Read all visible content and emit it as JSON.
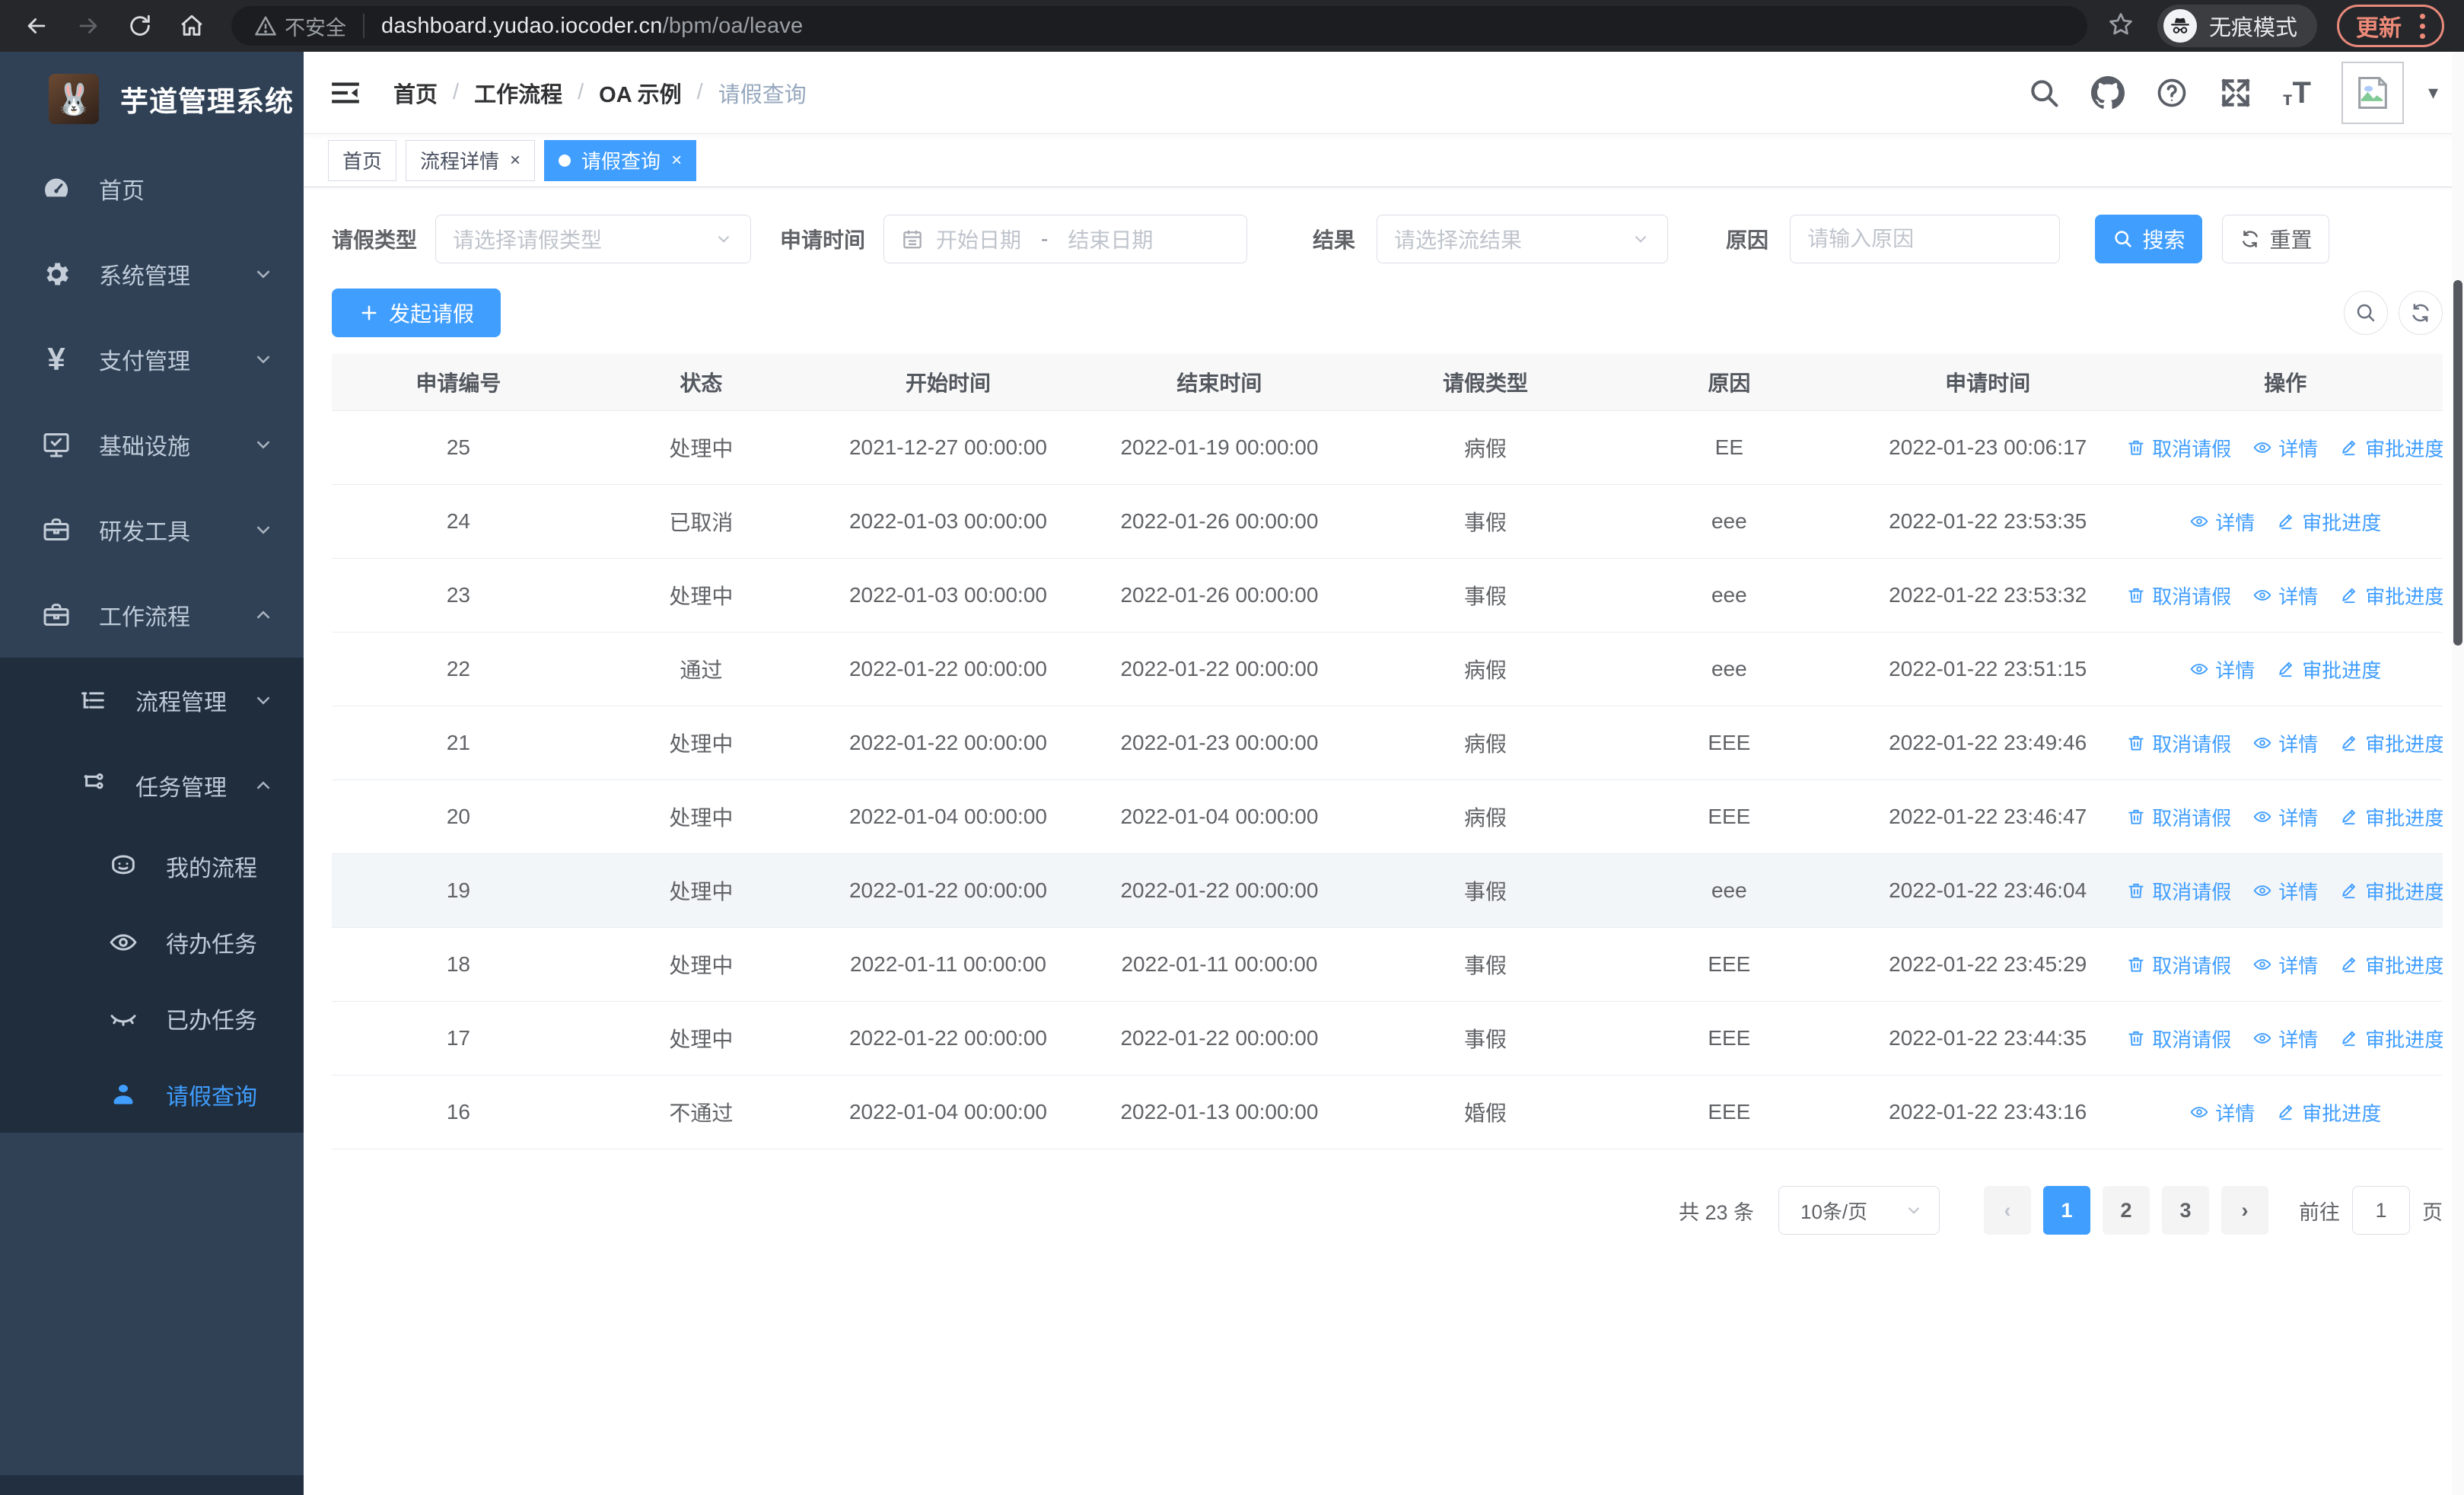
{
  "colors": {
    "accent": "#409eff",
    "sidebar_bg": "#304156",
    "submenu_bg": "#1f2d3d",
    "update_red": "#ee8a78"
  },
  "browser": {
    "security_label": "不安全",
    "url_host": "dashboard.yudao.iocoder.cn",
    "url_path": "/bpm/oa/leave",
    "incognito_label": "无痕模式",
    "update_label": "更新"
  },
  "sidebar": {
    "title": "芋道管理系统",
    "logo_glyph": "🐰",
    "menu": [
      {
        "key": "home",
        "label": "首页",
        "icon": "dashboard-icon",
        "level": 1
      },
      {
        "key": "system-management",
        "label": "系统管理",
        "icon": "gear-icon",
        "level": 1,
        "chevron": "down"
      },
      {
        "key": "payment-management",
        "label": "支付管理",
        "icon": "yen-icon",
        "level": 1,
        "chevron": "down"
      },
      {
        "key": "infrastructure",
        "label": "基础设施",
        "icon": "monitor-icon",
        "level": 1,
        "chevron": "down"
      },
      {
        "key": "dev-tools",
        "label": "研发工具",
        "icon": "toolbox-icon",
        "level": 1,
        "chevron": "down"
      },
      {
        "key": "workflow",
        "label": "工作流程",
        "icon": "toolbox-icon",
        "level": 1,
        "chevron": "up"
      },
      {
        "key": "process-management",
        "label": "流程管理",
        "icon": "tree-list-icon",
        "level": 2,
        "chevron": "down",
        "dark": true
      },
      {
        "key": "task-management",
        "label": "任务管理",
        "icon": "branch-icon",
        "level": 2,
        "chevron": "up",
        "dark": true
      },
      {
        "key": "my-processes",
        "label": "我的流程",
        "icon": "face-icon",
        "level": 3,
        "dark": true
      },
      {
        "key": "todo-tasks",
        "label": "待办任务",
        "icon": "eye-open-icon",
        "level": 3,
        "dark": true
      },
      {
        "key": "done-tasks",
        "label": "已办任务",
        "icon": "eye-closed-icon",
        "level": 3,
        "dark": true
      },
      {
        "key": "leave-query",
        "label": "请假查询",
        "icon": "user-icon",
        "level": 3,
        "dark": true,
        "active": true
      }
    ]
  },
  "navbar": {
    "breadcrumb": [
      {
        "key": "home",
        "label": "首页"
      },
      {
        "key": "workflow",
        "label": "工作流程"
      },
      {
        "key": "oa-example",
        "label": "OA 示例"
      },
      {
        "key": "leave-query",
        "label": "请假查询",
        "current": true
      }
    ]
  },
  "tabs": [
    {
      "key": "home",
      "label": "首页",
      "closable": false,
      "active": false
    },
    {
      "key": "process-detail",
      "label": "流程详情",
      "closable": true,
      "active": false
    },
    {
      "key": "leave-query",
      "label": "请假查询",
      "closable": true,
      "active": true
    }
  ],
  "filters": {
    "leave_type_label": "请假类型",
    "leave_type_placeholder": "请选择请假类型",
    "apply_time_label": "申请时间",
    "date_start_placeholder": "开始日期",
    "date_separator": "-",
    "date_end_placeholder": "结束日期",
    "result_label": "结果",
    "result_placeholder": "请选择流结果",
    "reason_label": "原因",
    "reason_placeholder": "请输入原因",
    "search_label": "搜索",
    "reset_label": "重置"
  },
  "toolbar": {
    "create_label": "发起请假"
  },
  "table": {
    "columns": [
      "申请编号",
      "状态",
      "开始时间",
      "结束时间",
      "请假类型",
      "原因",
      "申请时间",
      "操作"
    ],
    "action_labels": {
      "cancel": "取消请假",
      "detail": "详情",
      "progress": "审批进度"
    },
    "rows": [
      {
        "id": "25",
        "status": "处理中",
        "start": "2021-12-27 00:00:00",
        "end": "2022-01-19 00:00:00",
        "type": "病假",
        "reason": "EE",
        "applied": "2022-01-23 00:06:17",
        "actions": [
          "cancel",
          "detail",
          "progress"
        ]
      },
      {
        "id": "24",
        "status": "已取消",
        "start": "2022-01-03 00:00:00",
        "end": "2022-01-26 00:00:00",
        "type": "事假",
        "reason": "eee",
        "applied": "2022-01-22 23:53:35",
        "actions": [
          "detail",
          "progress"
        ]
      },
      {
        "id": "23",
        "status": "处理中",
        "start": "2022-01-03 00:00:00",
        "end": "2022-01-26 00:00:00",
        "type": "事假",
        "reason": "eee",
        "applied": "2022-01-22 23:53:32",
        "actions": [
          "cancel",
          "detail",
          "progress"
        ]
      },
      {
        "id": "22",
        "status": "通过",
        "start": "2022-01-22 00:00:00",
        "end": "2022-01-22 00:00:00",
        "type": "病假",
        "reason": "eee",
        "applied": "2022-01-22 23:51:15",
        "actions": [
          "detail",
          "progress"
        ]
      },
      {
        "id": "21",
        "status": "处理中",
        "start": "2022-01-22 00:00:00",
        "end": "2022-01-23 00:00:00",
        "type": "病假",
        "reason": "EEE",
        "applied": "2022-01-22 23:49:46",
        "actions": [
          "cancel",
          "detail",
          "progress"
        ]
      },
      {
        "id": "20",
        "status": "处理中",
        "start": "2022-01-04 00:00:00",
        "end": "2022-01-04 00:00:00",
        "type": "病假",
        "reason": "EEE",
        "applied": "2022-01-22 23:46:47",
        "actions": [
          "cancel",
          "detail",
          "progress"
        ]
      },
      {
        "id": "19",
        "status": "处理中",
        "start": "2022-01-22 00:00:00",
        "end": "2022-01-22 00:00:00",
        "type": "事假",
        "reason": "eee",
        "applied": "2022-01-22 23:46:04",
        "actions": [
          "cancel",
          "detail",
          "progress"
        ],
        "highlight": true
      },
      {
        "id": "18",
        "status": "处理中",
        "start": "2022-01-11 00:00:00",
        "end": "2022-01-11 00:00:00",
        "type": "事假",
        "reason": "EEE",
        "applied": "2022-01-22 23:45:29",
        "actions": [
          "cancel",
          "detail",
          "progress"
        ]
      },
      {
        "id": "17",
        "status": "处理中",
        "start": "2022-01-22 00:00:00",
        "end": "2022-01-22 00:00:00",
        "type": "事假",
        "reason": "EEE",
        "applied": "2022-01-22 23:44:35",
        "actions": [
          "cancel",
          "detail",
          "progress"
        ]
      },
      {
        "id": "16",
        "status": "不通过",
        "start": "2022-01-04 00:00:00",
        "end": "2022-01-13 00:00:00",
        "type": "婚假",
        "reason": "EEE",
        "applied": "2022-01-22 23:43:16",
        "actions": [
          "detail",
          "progress"
        ]
      }
    ]
  },
  "pagination": {
    "total_label": "共 23 条",
    "page_size": "10条/页",
    "pages": [
      "1",
      "2",
      "3"
    ],
    "active_page": "1",
    "prev_enabled": false,
    "next_enabled": true,
    "goto_label": "前往",
    "goto_value": "1",
    "page_unit": "页"
  }
}
